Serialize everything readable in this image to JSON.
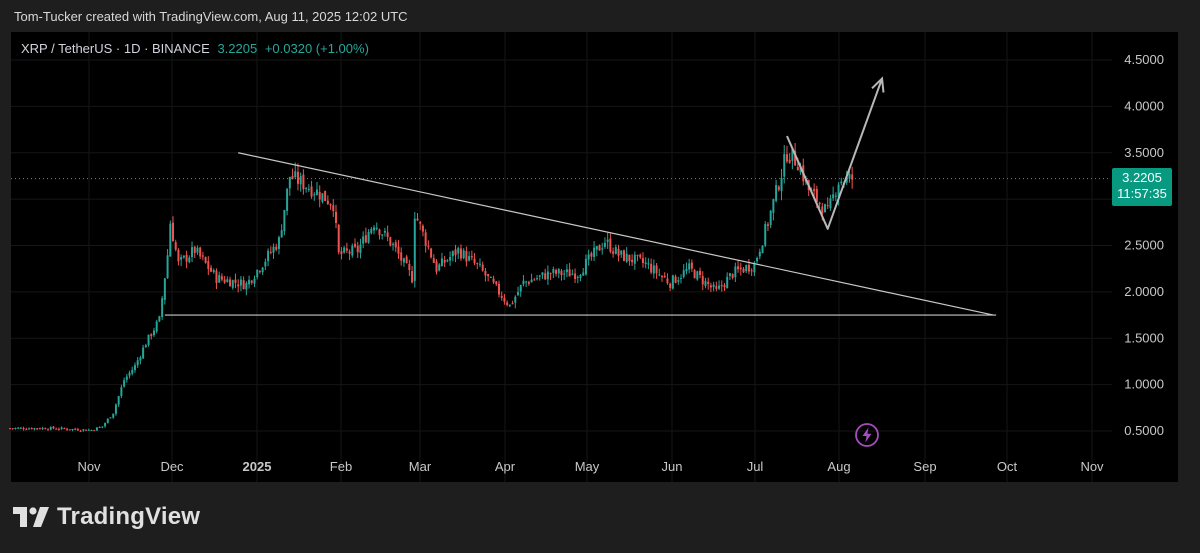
{
  "attribution": "Tom-Tucker created with TradingView.com, Aug 11, 2025 12:02 UTC",
  "legend": {
    "symbol": "XRP / TetherUS · 1D · BINANCE",
    "last": "3.2205",
    "change": "+0.0320 (+1.00%)"
  },
  "price_tag": {
    "price": "3.2205",
    "countdown": "11:57:35"
  },
  "brand": {
    "name": "TradingView"
  },
  "colors": {
    "up": "#26a69a",
    "down": "#ef5350",
    "trendline": "#c8c8c8",
    "arrow": "#b8b8b8",
    "tag": "#089981",
    "flash": "#9c27b0"
  },
  "icons": {
    "flash": "lightning-icon",
    "logo": "tradingview-logo-icon"
  },
  "chart_data": {
    "type": "candlestick",
    "symbol": "XRP/USDT",
    "interval": "1D",
    "exchange": "BINANCE",
    "x_tick_labels": [
      "Nov",
      "Dec",
      "2025",
      "Feb",
      "Mar",
      "Apr",
      "May",
      "Jun",
      "Jul",
      "Aug",
      "Sep",
      "Oct",
      "Nov"
    ],
    "y_tick_labels": [
      "4.5000",
      "4.0000",
      "3.5000",
      "3.0000",
      "2.5000",
      "2.0000",
      "1.5000",
      "1.0000",
      "0.5000"
    ],
    "ylim": [
      0.5,
      4.5
    ],
    "grid": true,
    "last_price": 3.2205,
    "close_path": [
      [
        "2024-10-05",
        0.53
      ],
      [
        "2024-10-20",
        0.53
      ],
      [
        "2024-11-04",
        0.51
      ],
      [
        "2024-11-08",
        0.55
      ],
      [
        "2024-11-12",
        0.7
      ],
      [
        "2024-11-16",
        1.05
      ],
      [
        "2024-11-20",
        1.2
      ],
      [
        "2024-11-24",
        1.45
      ],
      [
        "2024-11-29",
        1.7
      ],
      [
        "2024-12-02",
        2.4
      ],
      [
        "2024-12-03",
        2.75
      ],
      [
        "2024-12-06",
        2.3
      ],
      [
        "2024-12-12",
        2.45
      ],
      [
        "2024-12-20",
        2.15
      ],
      [
        "2024-12-31",
        2.08
      ],
      [
        "2025-01-07",
        2.35
      ],
      [
        "2025-01-12",
        2.55
      ],
      [
        "2025-01-16",
        3.25
      ],
      [
        "2025-01-19",
        3.2
      ],
      [
        "2025-01-26",
        3.08
      ],
      [
        "2025-02-01",
        2.95
      ],
      [
        "2025-02-03",
        2.4
      ],
      [
        "2025-02-10",
        2.45
      ],
      [
        "2025-02-16",
        2.75
      ],
      [
        "2025-02-23",
        2.5
      ],
      [
        "2025-03-02",
        2.15
      ],
      [
        "2025-03-03",
        2.85
      ],
      [
        "2025-03-11",
        2.25
      ],
      [
        "2025-03-19",
        2.45
      ],
      [
        "2025-03-27",
        2.25
      ],
      [
        "2025-04-07",
        1.85
      ],
      [
        "2025-04-12",
        2.1
      ],
      [
        "2025-04-22",
        2.2
      ],
      [
        "2025-05-02",
        2.2
      ],
      [
        "2025-05-12",
        2.55
      ],
      [
        "2025-05-17",
        2.4
      ],
      [
        "2025-05-27",
        2.3
      ],
      [
        "2025-06-05",
        2.1
      ],
      [
        "2025-06-12",
        2.25
      ],
      [
        "2025-06-22",
        2.0
      ],
      [
        "2025-06-28",
        2.2
      ],
      [
        "2025-07-06",
        2.3
      ],
      [
        "2025-07-11",
        2.75
      ],
      [
        "2025-07-18",
        3.5
      ],
      [
        "2025-07-22",
        3.4
      ],
      [
        "2025-07-26",
        3.1
      ],
      [
        "2025-08-02",
        2.85
      ],
      [
        "2025-08-06",
        3.2
      ],
      [
        "2025-08-11",
        3.2205
      ]
    ],
    "annotations": {
      "descending_trendline": [
        [
          "2024-12-28",
          3.5
        ],
        [
          "2025-10-02",
          1.75
        ]
      ],
      "support_line": [
        [
          "2024-12-01",
          1.75
        ],
        [
          "2025-10-03",
          1.75
        ]
      ],
      "projection_path": [
        [
          "2025-07-18",
          3.68
        ],
        [
          "2025-08-02",
          2.68
        ],
        [
          "2025-08-22",
          4.3
        ]
      ]
    }
  }
}
